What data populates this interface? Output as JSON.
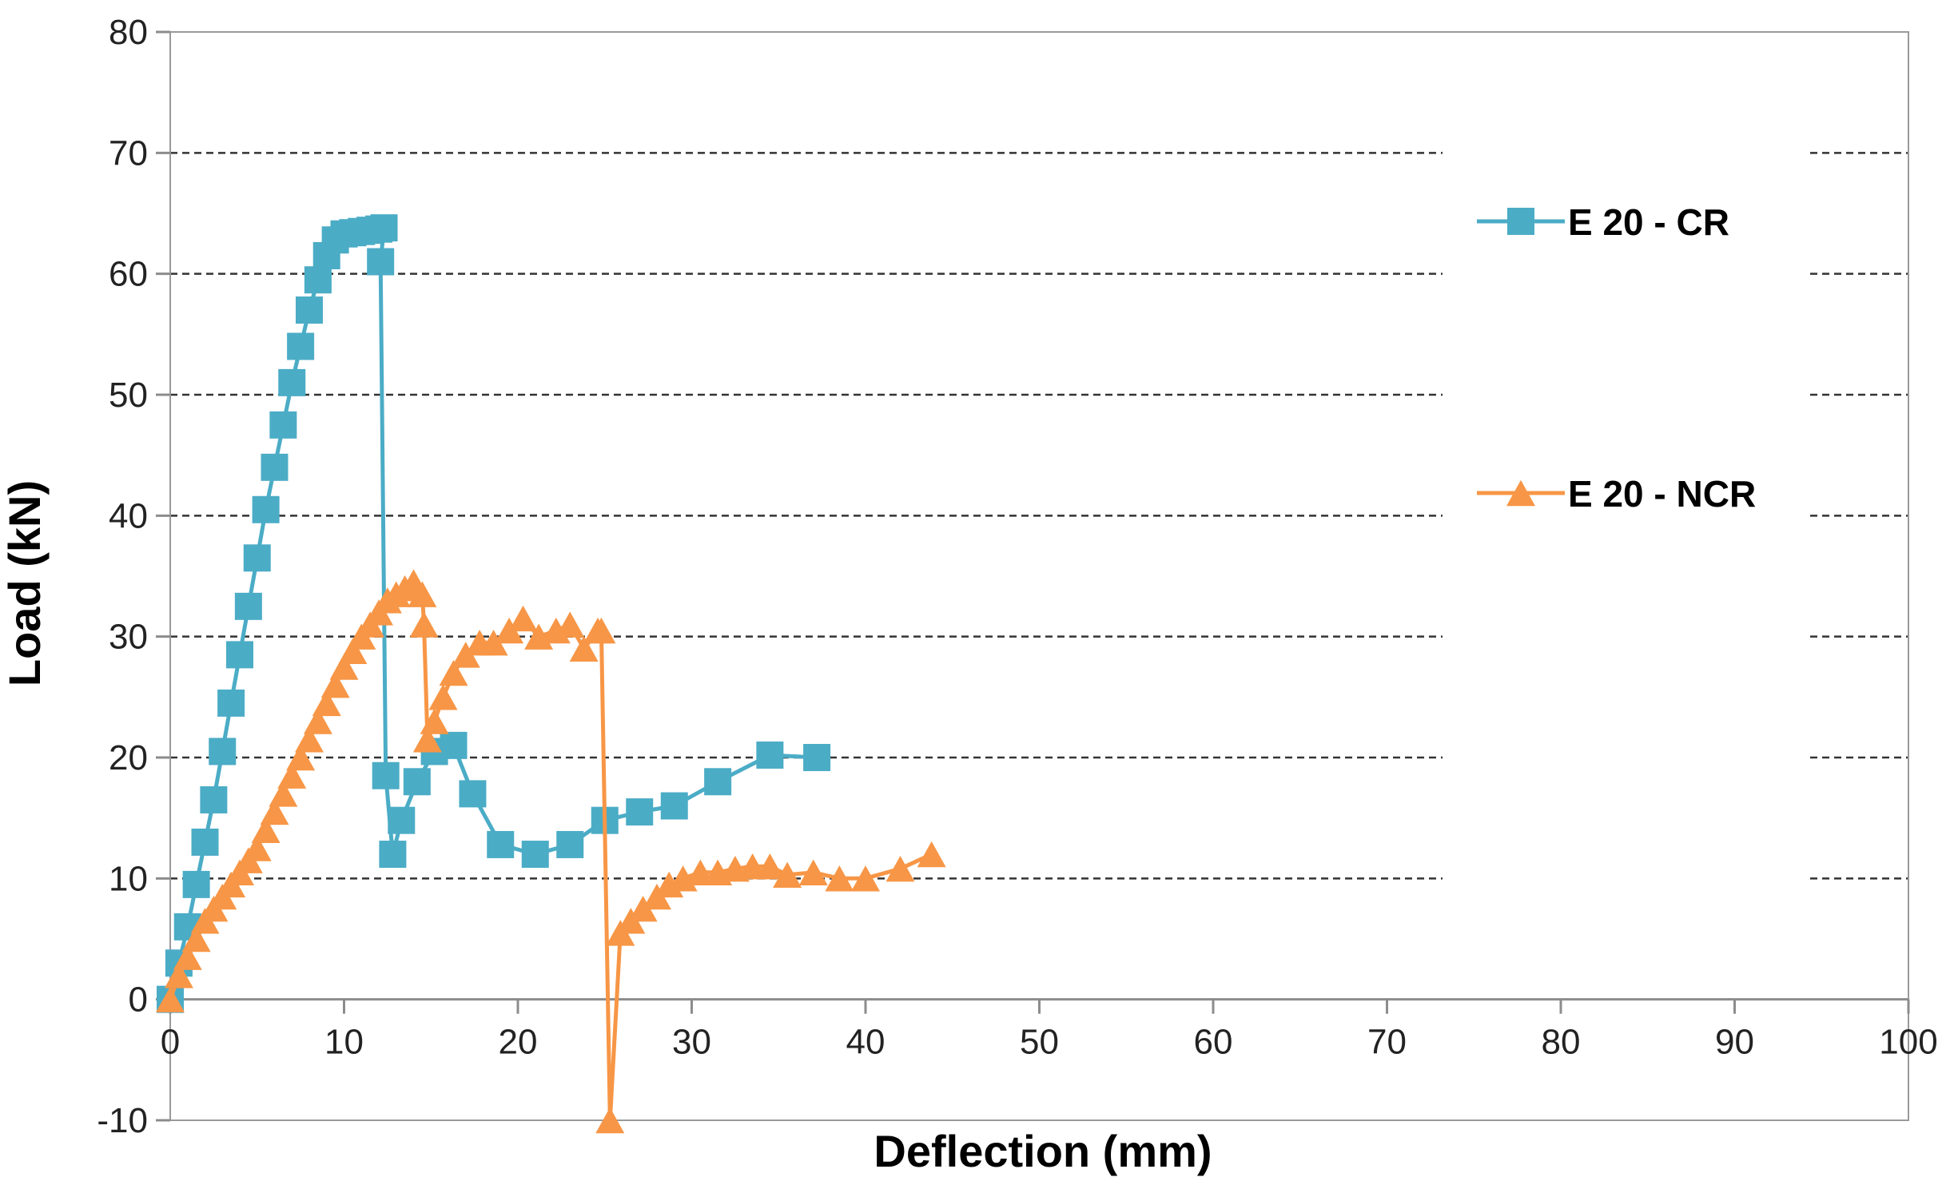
{
  "chart_data": {
    "type": "scatter",
    "title": "",
    "xlabel": "Deflection (mm)",
    "ylabel": "Load (kN)",
    "xlim": [
      0,
      100
    ],
    "ylim": [
      -10,
      80
    ],
    "x_ticks": [
      "0",
      "10",
      "20",
      "30",
      "40",
      "50",
      "60",
      "70",
      "80",
      "90",
      "100"
    ],
    "y_ticks": [
      "-10",
      "0",
      "10",
      "20",
      "30",
      "40",
      "50",
      "60",
      "70",
      "80"
    ],
    "x_tick_values": [
      0,
      10,
      20,
      30,
      40,
      50,
      60,
      70,
      80,
      90,
      100
    ],
    "y_tick_values": [
      -10,
      0,
      10,
      20,
      30,
      40,
      50,
      60,
      70,
      80
    ],
    "grid": "horizontal dashed",
    "legend_position": "right",
    "series": [
      {
        "name": "E 20 - CR",
        "color": "#4bacc6",
        "marker": "square",
        "x": [
          0,
          0.5,
          1,
          1.5,
          2,
          2.5,
          3,
          3.5,
          4,
          4.5,
          5,
          5.5,
          6,
          6.5,
          7,
          7.5,
          8,
          8.5,
          9,
          9.5,
          10,
          10.5,
          11,
          11.5,
          12,
          12.3,
          12.1,
          12.4,
          12.8,
          13.3,
          14.2,
          15.2,
          16.3,
          17.4,
          19,
          21,
          23,
          25,
          27,
          29,
          31.5,
          34.5,
          37.2
        ],
        "y": [
          0,
          3,
          6,
          9.5,
          13,
          16.5,
          20.5,
          24.5,
          28.5,
          32.5,
          36.5,
          40.5,
          44,
          47.5,
          51,
          54,
          57,
          59.5,
          61.5,
          62.8,
          63.3,
          63.4,
          63.5,
          63.6,
          63.7,
          63.8,
          61,
          18.5,
          12,
          14.8,
          18,
          20.5,
          21,
          17,
          12.8,
          12,
          12.8,
          14.8,
          15.5,
          16,
          18,
          20.2,
          20
        ]
      },
      {
        "name": "E 20 - NCR",
        "color": "#f79646",
        "marker": "triangle",
        "x": [
          0,
          0.5,
          1,
          1.5,
          2,
          2.5,
          3,
          3.5,
          4,
          4.5,
          5,
          5.5,
          6,
          6.5,
          7,
          7.5,
          8,
          8.5,
          9,
          9.5,
          10,
          10.5,
          11,
          11.5,
          12,
          12.5,
          13,
          13.5,
          14,
          14.5,
          14.6,
          14.8,
          15.2,
          15.7,
          16.3,
          17,
          17.8,
          18.6,
          19.5,
          20.3,
          21.2,
          22.2,
          23,
          23.8,
          24.6,
          24.8,
          25.3,
          25.9,
          26.5,
          27.2,
          28,
          28.7,
          29.5,
          30.5,
          31.5,
          32.5,
          33.5,
          34.5,
          35.5,
          37,
          38.5,
          40,
          42,
          43.8
        ],
        "y": [
          0,
          2,
          3.5,
          5,
          6.5,
          7.5,
          8.5,
          9.5,
          10.5,
          11.5,
          12.5,
          14,
          15.5,
          17,
          18.5,
          20,
          21.5,
          23,
          24.5,
          26,
          27.5,
          28.8,
          30,
          31,
          32,
          33,
          33.5,
          34,
          34.5,
          33.5,
          31,
          21.5,
          23,
          25,
          27,
          28.5,
          29.5,
          29.5,
          30.5,
          31.5,
          30,
          30.5,
          31,
          29,
          30.5,
          30.5,
          -10,
          5.5,
          6.5,
          7.5,
          8.5,
          9.5,
          10,
          10.5,
          10.5,
          10.8,
          11,
          11,
          10.3,
          10.5,
          10,
          10,
          10.8,
          12
        ]
      }
    ]
  }
}
